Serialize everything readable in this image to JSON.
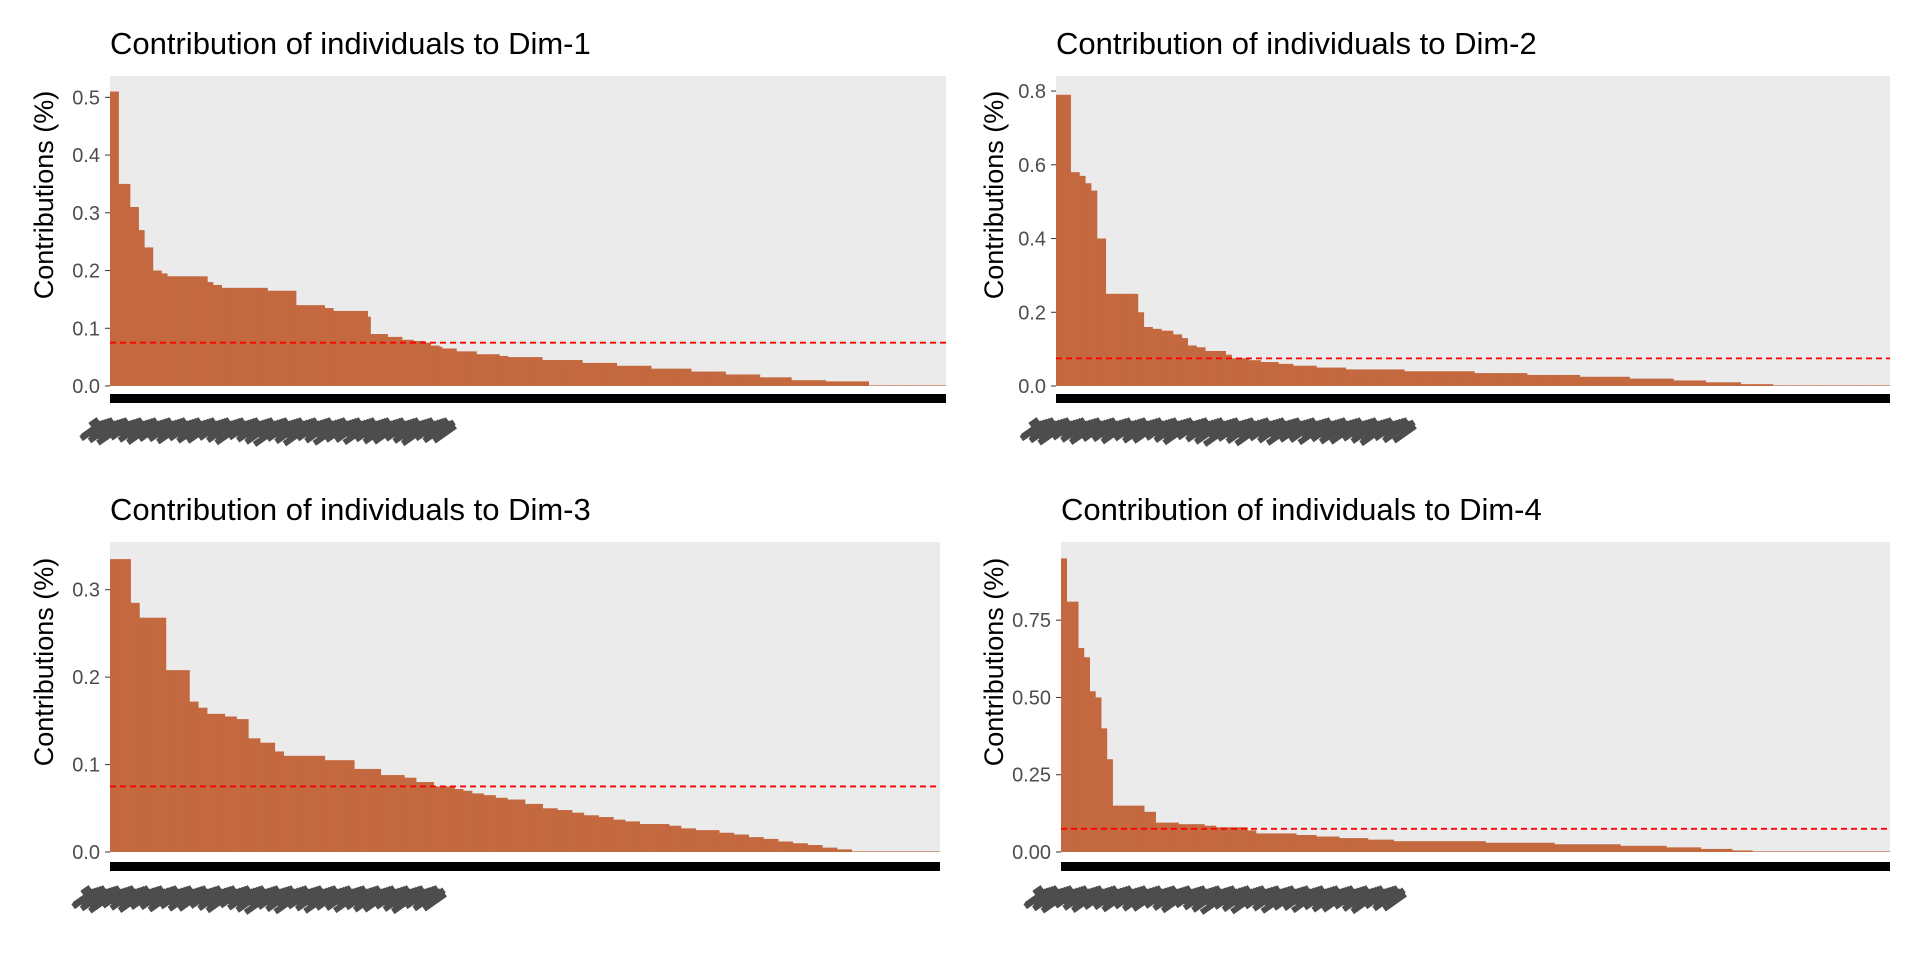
{
  "colors": {
    "bar": "#c4683f",
    "panel_background": "#ebebeb",
    "reference_line": "#ff0000",
    "axis_text": "#4d4d4d",
    "xaxis_band": "#000000",
    "xlabel_smear": "#4d4d4d"
  },
  "chart_data": [
    {
      "type": "bar",
      "title": "Contribution of individuals to Dim-1",
      "xlabel": "",
      "ylabel": "Contributions (%)",
      "ylim": [
        0,
        0.53
      ],
      "yticks": [
        0.0,
        0.1,
        0.2,
        0.3,
        0.4,
        0.5
      ],
      "ytick_labels": [
        "0.0",
        "0.1",
        "0.2",
        "0.3",
        "0.4",
        "0.5"
      ],
      "reference_line": 0.075,
      "n_individuals": 280,
      "values_sorted_desc": [
        0.51,
        0.51,
        0.51,
        0.35,
        0.35,
        0.35,
        0.35,
        0.31,
        0.31,
        0.31,
        0.27,
        0.27,
        0.24,
        0.24,
        0.24,
        0.2,
        0.2,
        0.2,
        0.195,
        0.195,
        0.19,
        0.19,
        0.19,
        0.19,
        0.19,
        0.19,
        0.19,
        0.19,
        0.19,
        0.19,
        0.19,
        0.19,
        0.19,
        0.19,
        0.18,
        0.18,
        0.175,
        0.175,
        0.175,
        0.17,
        0.17,
        0.17,
        0.17,
        0.17,
        0.17,
        0.17,
        0.17,
        0.17,
        0.17,
        0.17,
        0.17,
        0.17,
        0.17,
        0.17,
        0.17,
        0.165,
        0.165,
        0.165,
        0.165,
        0.165,
        0.165,
        0.165,
        0.165,
        0.165,
        0.165,
        0.14,
        0.14,
        0.14,
        0.14,
        0.14,
        0.14,
        0.14,
        0.14,
        0.14,
        0.14,
        0.135,
        0.135,
        0.135,
        0.13,
        0.13,
        0.13,
        0.13,
        0.13,
        0.13,
        0.13,
        0.13,
        0.13,
        0.13,
        0.13,
        0.13,
        0.12,
        0.09,
        0.09,
        0.09,
        0.09,
        0.09,
        0.09,
        0.085,
        0.085,
        0.085,
        0.085,
        0.085,
        0.08,
        0.08,
        0.08,
        0.08,
        0.078,
        0.078,
        0.078,
        0.078,
        0.075,
        0.075,
        0.07,
        0.07,
        0.07,
        0.068,
        0.065,
        0.065,
        0.065,
        0.065,
        0.065,
        0.06,
        0.06,
        0.06,
        0.06,
        0.06,
        0.06,
        0.06,
        0.055,
        0.055,
        0.055,
        0.055,
        0.055,
        0.055,
        0.055,
        0.055,
        0.052,
        0.052,
        0.052,
        0.05,
        0.05,
        0.05,
        0.05,
        0.05,
        0.05,
        0.05,
        0.05,
        0.05,
        0.05,
        0.05,
        0.05,
        0.045,
        0.045,
        0.045,
        0.045,
        0.045,
        0.045,
        0.045,
        0.045,
        0.045,
        0.045,
        0.045,
        0.045,
        0.045,
        0.045,
        0.04,
        0.04,
        0.04,
        0.04,
        0.04,
        0.04,
        0.04,
        0.04,
        0.04,
        0.04,
        0.04,
        0.04,
        0.035,
        0.035,
        0.035,
        0.035,
        0.035,
        0.035,
        0.035,
        0.035,
        0.035,
        0.035,
        0.035,
        0.035,
        0.03,
        0.03,
        0.03,
        0.03,
        0.03,
        0.03,
        0.03,
        0.03,
        0.03,
        0.03,
        0.03,
        0.03,
        0.03,
        0.03,
        0.025,
        0.025,
        0.025,
        0.025,
        0.025,
        0.025,
        0.025,
        0.025,
        0.025,
        0.025,
        0.025,
        0.025,
        0.02,
        0.02,
        0.02,
        0.02,
        0.02,
        0.02,
        0.02,
        0.02,
        0.02,
        0.02,
        0.02,
        0.02,
        0.015,
        0.015,
        0.015,
        0.015,
        0.015,
        0.015,
        0.015,
        0.015,
        0.015,
        0.015,
        0.015,
        0.01,
        0.01,
        0.01,
        0.01,
        0.01,
        0.01,
        0.01,
        0.01,
        0.01,
        0.01,
        0.01,
        0.01,
        0.008,
        0.008,
        0.008,
        0.008,
        0.008,
        0.008,
        0.008,
        0.008,
        0.008,
        0.008,
        0.008,
        0.008,
        0.008,
        0.008,
        0.008,
        0.0,
        0.0,
        0.0,
        0.0,
        0.0,
        0.0,
        0.0,
        0.0,
        0.0,
        0.0,
        0.0,
        0.0,
        0.0,
        0.0,
        0.0,
        0.0,
        0.0,
        0.0,
        0.0,
        0.0,
        0.0,
        0.0,
        0.0,
        0.0,
        0.0,
        0.0,
        0.0
      ]
    },
    {
      "type": "bar",
      "title": "Contribution of individuals to Dim-2",
      "xlabel": "",
      "ylabel": "Contributions (%)",
      "ylim": [
        0,
        0.83
      ],
      "yticks": [
        0.0,
        0.2,
        0.4,
        0.6,
        0.8
      ],
      "ytick_labels": [
        "0.0",
        "0.2",
        "0.4",
        "0.6",
        "0.8"
      ],
      "reference_line": 0.075,
      "n_individuals": 280,
      "values_sorted_desc": [
        0.79,
        0.79,
        0.79,
        0.79,
        0.79,
        0.58,
        0.58,
        0.58,
        0.57,
        0.57,
        0.55,
        0.55,
        0.53,
        0.53,
        0.4,
        0.4,
        0.4,
        0.25,
        0.25,
        0.25,
        0.25,
        0.25,
        0.25,
        0.25,
        0.25,
        0.25,
        0.25,
        0.25,
        0.2,
        0.2,
        0.16,
        0.16,
        0.16,
        0.155,
        0.155,
        0.155,
        0.15,
        0.15,
        0.15,
        0.15,
        0.14,
        0.14,
        0.14,
        0.13,
        0.13,
        0.11,
        0.11,
        0.11,
        0.105,
        0.105,
        0.105,
        0.095,
        0.095,
        0.095,
        0.095,
        0.095,
        0.095,
        0.095,
        0.085,
        0.085,
        0.075,
        0.075,
        0.075,
        0.075,
        0.075,
        0.075,
        0.07,
        0.07,
        0.07,
        0.07,
        0.065,
        0.065,
        0.065,
        0.065,
        0.065,
        0.065,
        0.06,
        0.06,
        0.06,
        0.06,
        0.06,
        0.055,
        0.055,
        0.055,
        0.055,
        0.055,
        0.055,
        0.055,
        0.055,
        0.05,
        0.05,
        0.05,
        0.05,
        0.05,
        0.05,
        0.05,
        0.05,
        0.05,
        0.05,
        0.045,
        0.045,
        0.045,
        0.045,
        0.045,
        0.045,
        0.045,
        0.045,
        0.045,
        0.045,
        0.045,
        0.045,
        0.045,
        0.045,
        0.045,
        0.045,
        0.045,
        0.045,
        0.045,
        0.045,
        0.04,
        0.04,
        0.04,
        0.04,
        0.04,
        0.04,
        0.04,
        0.04,
        0.04,
        0.04,
        0.04,
        0.04,
        0.04,
        0.04,
        0.04,
        0.04,
        0.04,
        0.04,
        0.04,
        0.04,
        0.04,
        0.04,
        0.04,
        0.04,
        0.035,
        0.035,
        0.035,
        0.035,
        0.035,
        0.035,
        0.035,
        0.035,
        0.035,
        0.035,
        0.035,
        0.035,
        0.035,
        0.035,
        0.035,
        0.035,
        0.035,
        0.035,
        0.03,
        0.03,
        0.03,
        0.03,
        0.03,
        0.03,
        0.03,
        0.03,
        0.03,
        0.03,
        0.03,
        0.03,
        0.03,
        0.03,
        0.03,
        0.03,
        0.03,
        0.03,
        0.025,
        0.025,
        0.025,
        0.025,
        0.025,
        0.025,
        0.025,
        0.025,
        0.025,
        0.025,
        0.025,
        0.025,
        0.025,
        0.025,
        0.025,
        0.025,
        0.025,
        0.02,
        0.02,
        0.02,
        0.02,
        0.02,
        0.02,
        0.02,
        0.02,
        0.02,
        0.02,
        0.02,
        0.02,
        0.02,
        0.02,
        0.02,
        0.015,
        0.015,
        0.015,
        0.015,
        0.015,
        0.015,
        0.015,
        0.015,
        0.015,
        0.015,
        0.015,
        0.01,
        0.01,
        0.01,
        0.01,
        0.01,
        0.01,
        0.01,
        0.01,
        0.01,
        0.01,
        0.01,
        0.01,
        0.005,
        0.005,
        0.005,
        0.005,
        0.005,
        0.005,
        0.005,
        0.005,
        0.005,
        0.005,
        0.005,
        0.0,
        0.0,
        0.0,
        0.0,
        0.0,
        0.0,
        0.0,
        0.0,
        0.0,
        0.0,
        0.0,
        0.0,
        0.0,
        0.0,
        0.0,
        0.0,
        0.0,
        0.0,
        0.0,
        0.0,
        0.0,
        0.0,
        0.0,
        0.0,
        0.0,
        0.0,
        0.0,
        0.0,
        0.0,
        0.0,
        0.0,
        0.0,
        0.0,
        0.0,
        0.0,
        0.0,
        0.0,
        0.0,
        0.0,
        0.0
      ]
    },
    {
      "type": "bar",
      "title": "Contribution of individuals to Dim-3",
      "xlabel": "",
      "ylabel": "Contributions (%)",
      "ylim": [
        0,
        0.35
      ],
      "yticks": [
        0.0,
        0.1,
        0.2,
        0.3
      ],
      "ytick_labels": [
        "0.0",
        "0.1",
        "0.2",
        "0.3"
      ],
      "reference_line": 0.075,
      "n_individuals": 280,
      "values_sorted_desc": [
        0.335,
        0.335,
        0.335,
        0.335,
        0.335,
        0.335,
        0.335,
        0.285,
        0.285,
        0.285,
        0.268,
        0.268,
        0.268,
        0.268,
        0.268,
        0.268,
        0.268,
        0.268,
        0.268,
        0.208,
        0.208,
        0.208,
        0.208,
        0.208,
        0.208,
        0.208,
        0.208,
        0.172,
        0.172,
        0.172,
        0.165,
        0.165,
        0.165,
        0.158,
        0.158,
        0.158,
        0.158,
        0.158,
        0.158,
        0.155,
        0.155,
        0.155,
        0.155,
        0.152,
        0.152,
        0.152,
        0.152,
        0.13,
        0.13,
        0.13,
        0.13,
        0.125,
        0.125,
        0.125,
        0.125,
        0.125,
        0.115,
        0.115,
        0.115,
        0.11,
        0.11,
        0.11,
        0.11,
        0.11,
        0.11,
        0.11,
        0.11,
        0.11,
        0.11,
        0.11,
        0.11,
        0.11,
        0.11,
        0.105,
        0.105,
        0.105,
        0.105,
        0.105,
        0.105,
        0.105,
        0.105,
        0.105,
        0.105,
        0.095,
        0.095,
        0.095,
        0.095,
        0.095,
        0.095,
        0.095,
        0.095,
        0.095,
        0.088,
        0.088,
        0.088,
        0.088,
        0.088,
        0.088,
        0.088,
        0.088,
        0.085,
        0.085,
        0.085,
        0.085,
        0.08,
        0.08,
        0.08,
        0.08,
        0.08,
        0.08,
        0.075,
        0.075,
        0.075,
        0.075,
        0.075,
        0.075,
        0.075,
        0.072,
        0.072,
        0.072,
        0.07,
        0.07,
        0.07,
        0.067,
        0.067,
        0.067,
        0.067,
        0.065,
        0.065,
        0.065,
        0.065,
        0.062,
        0.062,
        0.062,
        0.062,
        0.06,
        0.06,
        0.06,
        0.06,
        0.06,
        0.06,
        0.055,
        0.055,
        0.055,
        0.055,
        0.055,
        0.055,
        0.05,
        0.05,
        0.05,
        0.05,
        0.05,
        0.048,
        0.048,
        0.048,
        0.048,
        0.048,
        0.045,
        0.045,
        0.045,
        0.045,
        0.042,
        0.042,
        0.042,
        0.042,
        0.042,
        0.04,
        0.04,
        0.04,
        0.04,
        0.04,
        0.037,
        0.037,
        0.037,
        0.037,
        0.035,
        0.035,
        0.035,
        0.035,
        0.035,
        0.032,
        0.032,
        0.032,
        0.032,
        0.032,
        0.032,
        0.032,
        0.032,
        0.032,
        0.032,
        0.03,
        0.03,
        0.03,
        0.03,
        0.027,
        0.027,
        0.027,
        0.027,
        0.027,
        0.025,
        0.025,
        0.025,
        0.025,
        0.025,
        0.025,
        0.025,
        0.025,
        0.022,
        0.022,
        0.022,
        0.022,
        0.022,
        0.02,
        0.02,
        0.02,
        0.02,
        0.02,
        0.017,
        0.017,
        0.017,
        0.017,
        0.017,
        0.015,
        0.015,
        0.015,
        0.015,
        0.015,
        0.012,
        0.012,
        0.012,
        0.012,
        0.012,
        0.01,
        0.01,
        0.01,
        0.01,
        0.01,
        0.008,
        0.008,
        0.008,
        0.008,
        0.008,
        0.005,
        0.005,
        0.005,
        0.005,
        0.005,
        0.003,
        0.003,
        0.003,
        0.003,
        0.003,
        0.0,
        0.0,
        0.0,
        0.0,
        0.0,
        0.0,
        0.0,
        0.0,
        0.0,
        0.0,
        0.0,
        0.0,
        0.0,
        0.0,
        0.0,
        0.0,
        0.0,
        0.0,
        0.0,
        0.0,
        0.0,
        0.0,
        0.0,
        0.0,
        0.0,
        0.0,
        0.0,
        0.0,
        0.0,
        0.0
      ]
    },
    {
      "type": "bar",
      "title": "Contribution of individuals to Dim-4",
      "xlabel": "",
      "ylabel": "Contributions (%)",
      "ylim": [
        0,
        0.99
      ],
      "yticks": [
        0.0,
        0.25,
        0.5,
        0.75
      ],
      "ytick_labels": [
        "0.00",
        "0.25",
        "0.50",
        "0.75"
      ],
      "reference_line": 0.075,
      "n_individuals": 280,
      "values_sorted_desc": [
        0.95,
        0.95,
        0.81,
        0.81,
        0.81,
        0.81,
        0.66,
        0.66,
        0.63,
        0.63,
        0.52,
        0.52,
        0.5,
        0.5,
        0.4,
        0.4,
        0.3,
        0.3,
        0.15,
        0.15,
        0.15,
        0.15,
        0.15,
        0.15,
        0.15,
        0.15,
        0.15,
        0.15,
        0.15,
        0.13,
        0.13,
        0.13,
        0.13,
        0.095,
        0.095,
        0.095,
        0.095,
        0.095,
        0.095,
        0.095,
        0.095,
        0.09,
        0.09,
        0.09,
        0.09,
        0.09,
        0.09,
        0.09,
        0.09,
        0.09,
        0.085,
        0.085,
        0.085,
        0.085,
        0.08,
        0.08,
        0.08,
        0.08,
        0.08,
        0.08,
        0.08,
        0.08,
        0.08,
        0.08,
        0.08,
        0.07,
        0.07,
        0.07,
        0.06,
        0.06,
        0.06,
        0.06,
        0.06,
        0.06,
        0.06,
        0.06,
        0.06,
        0.06,
        0.06,
        0.06,
        0.06,
        0.06,
        0.055,
        0.055,
        0.055,
        0.055,
        0.055,
        0.055,
        0.055,
        0.05,
        0.05,
        0.05,
        0.05,
        0.05,
        0.05,
        0.05,
        0.05,
        0.045,
        0.045,
        0.045,
        0.045,
        0.045,
        0.045,
        0.045,
        0.045,
        0.045,
        0.045,
        0.04,
        0.04,
        0.04,
        0.04,
        0.04,
        0.04,
        0.04,
        0.04,
        0.04,
        0.035,
        0.035,
        0.035,
        0.035,
        0.035,
        0.035,
        0.035,
        0.035,
        0.035,
        0.035,
        0.035,
        0.035,
        0.035,
        0.035,
        0.035,
        0.035,
        0.035,
        0.035,
        0.035,
        0.035,
        0.035,
        0.035,
        0.035,
        0.035,
        0.035,
        0.035,
        0.035,
        0.035,
        0.035,
        0.035,
        0.035,
        0.035,
        0.03,
        0.03,
        0.03,
        0.03,
        0.03,
        0.03,
        0.03,
        0.03,
        0.03,
        0.03,
        0.03,
        0.03,
        0.03,
        0.03,
        0.03,
        0.03,
        0.03,
        0.03,
        0.03,
        0.03,
        0.03,
        0.03,
        0.03,
        0.03,
        0.025,
        0.025,
        0.025,
        0.025,
        0.025,
        0.025,
        0.025,
        0.025,
        0.025,
        0.025,
        0.025,
        0.025,
        0.025,
        0.025,
        0.025,
        0.025,
        0.025,
        0.025,
        0.025,
        0.025,
        0.025,
        0.025,
        0.025,
        0.02,
        0.02,
        0.02,
        0.02,
        0.02,
        0.02,
        0.02,
        0.02,
        0.02,
        0.02,
        0.02,
        0.02,
        0.02,
        0.02,
        0.02,
        0.02,
        0.015,
        0.015,
        0.015,
        0.015,
        0.015,
        0.015,
        0.015,
        0.015,
        0.015,
        0.015,
        0.015,
        0.015,
        0.01,
        0.01,
        0.01,
        0.01,
        0.01,
        0.01,
        0.01,
        0.01,
        0.01,
        0.01,
        0.01,
        0.005,
        0.005,
        0.005,
        0.005,
        0.005,
        0.005,
        0.005,
        0.0,
        0.0,
        0.0,
        0.0,
        0.0,
        0.0,
        0.0,
        0.0,
        0.0,
        0.0,
        0.0,
        0.0,
        0.0,
        0.0,
        0.0,
        0.0,
        0.0,
        0.0,
        0.0,
        0.0,
        0.0,
        0.0,
        0.0,
        0.0,
        0.0,
        0.0,
        0.0,
        0.0,
        0.0,
        0.0,
        0.0,
        0.0,
        0.0,
        0.0,
        0.0,
        0.0,
        0.0,
        0.0,
        0.0,
        0.0,
        0.0,
        0.0,
        0.0,
        0.0,
        0.0,
        0.0,
        0.0,
        0.0
      ]
    }
  ]
}
